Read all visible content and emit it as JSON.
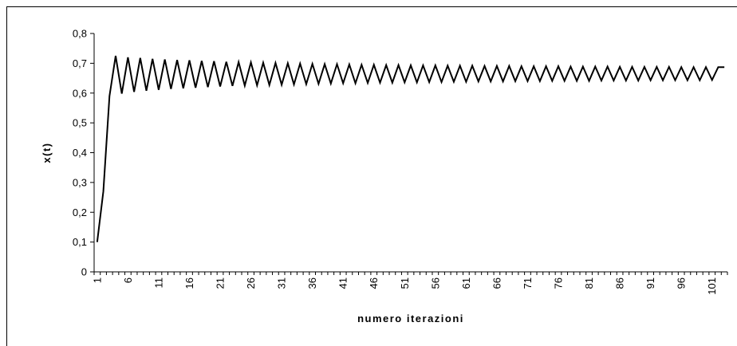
{
  "chart_data": {
    "type": "line",
    "title": "",
    "xlabel": "numero iterazioni",
    "ylabel": "x(t)",
    "xlim": [
      1,
      103
    ],
    "ylim": [
      0,
      0.8
    ],
    "ytick_values": [
      0,
      0.1,
      0.2,
      0.3,
      0.4,
      0.5,
      0.6,
      0.7,
      0.8
    ],
    "ytick_labels": [
      "0",
      "0,1",
      "0,2",
      "0,3",
      "0,4",
      "0,5",
      "0,6",
      "0,7",
      "0,8"
    ],
    "xtick_values": [
      1,
      6,
      11,
      16,
      21,
      26,
      31,
      36,
      41,
      46,
      51,
      56,
      61,
      66,
      71,
      76,
      81,
      86,
      91,
      96,
      101
    ],
    "xtick_labels": [
      "1",
      "6",
      "11",
      "16",
      "21",
      "26",
      "31",
      "36",
      "41",
      "46",
      "51",
      "56",
      "61",
      "66",
      "71",
      "76",
      "81",
      "86",
      "91",
      "96",
      "101"
    ],
    "grid": false,
    "legend": "none",
    "series": [
      {
        "x": [
          1,
          2,
          3,
          4,
          5,
          6,
          7,
          8,
          9,
          10,
          11,
          12,
          13,
          14,
          15,
          16,
          17,
          18,
          19,
          20,
          21,
          22,
          23,
          24,
          25,
          26,
          27,
          28,
          29,
          30,
          31,
          32,
          33,
          34,
          35,
          36,
          37,
          38,
          39,
          40,
          41,
          42,
          43,
          44,
          45,
          46,
          47,
          48,
          49,
          50,
          51,
          52,
          53,
          54,
          55,
          56,
          57,
          58,
          59,
          60,
          61,
          62,
          63,
          64,
          65,
          66,
          67,
          68,
          69,
          70,
          71,
          72,
          73,
          74,
          75,
          76,
          77,
          78,
          79,
          80,
          81,
          82,
          83,
          84,
          85,
          86,
          87,
          88,
          89,
          90,
          91,
          92,
          93,
          94,
          95,
          96,
          97,
          98,
          99,
          100,
          101,
          102,
          103
        ],
        "values": [
          0.1,
          0.27,
          0.59,
          0.725,
          0.598,
          0.72,
          0.604,
          0.718,
          0.608,
          0.715,
          0.611,
          0.713,
          0.614,
          0.711,
          0.616,
          0.71,
          0.618,
          0.708,
          0.62,
          0.707,
          0.622,
          0.705,
          0.624,
          0.704,
          0.625,
          0.703,
          0.626,
          0.702,
          0.627,
          0.701,
          0.628,
          0.7,
          0.629,
          0.699,
          0.63,
          0.698,
          0.631,
          0.697,
          0.632,
          0.697,
          0.633,
          0.696,
          0.633,
          0.695,
          0.634,
          0.695,
          0.635,
          0.694,
          0.635,
          0.694,
          0.636,
          0.693,
          0.636,
          0.693,
          0.637,
          0.693,
          0.637,
          0.692,
          0.638,
          0.692,
          0.638,
          0.692,
          0.639,
          0.691,
          0.639,
          0.691,
          0.639,
          0.691,
          0.64,
          0.69,
          0.64,
          0.69,
          0.64,
          0.69,
          0.641,
          0.69,
          0.641,
          0.689,
          0.641,
          0.689,
          0.641,
          0.689,
          0.642,
          0.689,
          0.642,
          0.688,
          0.642,
          0.688,
          0.642,
          0.688,
          0.643,
          0.688,
          0.643,
          0.688,
          0.643,
          0.687,
          0.643,
          0.687,
          0.643,
          0.687,
          0.644,
          0.687,
          0.687
        ],
        "color": "#000000"
      }
    ],
    "frame_color": "#000000"
  }
}
